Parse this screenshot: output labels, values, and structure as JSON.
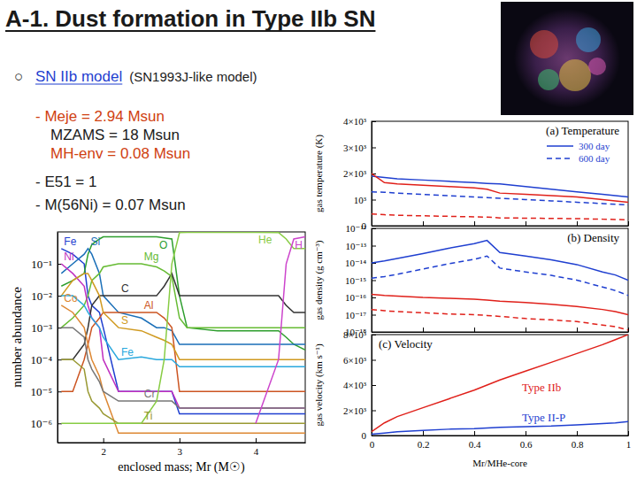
{
  "header": {
    "title": "A-1. Dust formation in Type IIb SN"
  },
  "model": {
    "bullet": "○",
    "heading": "SN IIb model",
    "subheading": "(SN1993J-like model)",
    "lines": [
      "- Meje = 2.94 Msun",
      "MZAMS = 18 Msun",
      "MH-env = 0.08 Msun",
      "- E51 = 1",
      "- M(56Ni) = 0.07 Msun"
    ]
  },
  "chart_data": [
    {
      "type": "line",
      "log": "y",
      "x_label": "enclosed mass; Mr (M☉)",
      "y_label": "number abundance",
      "x": [
        1.45,
        1.6,
        1.75,
        1.8,
        1.85,
        1.95,
        2.0,
        2.2,
        2.5,
        2.7,
        2.8,
        2.9,
        3.0,
        3.1,
        3.5,
        4.0,
        4.3,
        4.4,
        4.5,
        4.65
      ],
      "xlim": [
        1.4,
        4.65
      ],
      "xticks": [
        2,
        3,
        4
      ],
      "ylim": [
        2.5e-07,
        1
      ],
      "yticks": [
        {
          "value": 0.1,
          "label": "10⁻¹"
        },
        {
          "value": 0.01,
          "label": "10⁻²"
        },
        {
          "value": 0.001,
          "label": "10⁻³"
        },
        {
          "value": 0.0001,
          "label": "10⁻⁴"
        },
        {
          "value": 1e-05,
          "label": "10⁻⁵"
        },
        {
          "value": 1e-06,
          "label": "10⁻⁶"
        }
      ],
      "series": [
        {
          "name": "Fe",
          "color": "#1f3fd0",
          "values": [
            0.3,
            0.2,
            0.1,
            0.01,
            0.005,
            0.003,
            0.001,
            1e-05,
            1e-05,
            1e-05,
            1e-05,
            1e-05,
            2e-06,
            2e-06,
            2e-06,
            2e-06,
            2e-06,
            2e-06,
            2e-06,
            2e-06
          ]
        },
        {
          "name": "O",
          "color": "#2e9e2e",
          "values": [
            0.02,
            0.03,
            0.05,
            0.2,
            0.4,
            0.6,
            0.7,
            0.7,
            0.7,
            0.7,
            0.65,
            0.6,
            0.01,
            0.001,
            0.0008,
            0.0008,
            0.0008,
            0.0005,
            0.0003,
            0.0002
          ]
        },
        {
          "name": "Si",
          "color": "#1a6fb8",
          "values": [
            0.05,
            0.1,
            0.2,
            0.3,
            0.2,
            0.05,
            0.01,
            0.003,
            0.002,
            0.001,
            0.001,
            0.0008,
            0.0003,
            0.0003,
            0.0003,
            0.0003,
            0.0003,
            0.0003,
            0.0003,
            0.0003
          ]
        },
        {
          "name": "Mg",
          "color": "#66bb33",
          "values": [
            0.001,
            0.002,
            0.005,
            0.01,
            0.03,
            0.05,
            0.08,
            0.1,
            0.1,
            0.08,
            0.06,
            0.04,
            0.002,
            0.001,
            0.001,
            0.001,
            0.001,
            0.001,
            0.001,
            0.001
          ]
        },
        {
          "name": "Ni",
          "color": "#c030c0",
          "values": [
            0.1,
            0.05,
            0.02,
            0.005,
            0.002,
            0.001,
            0.0001,
            1e-05,
            1e-05,
            1e-05,
            1e-05,
            1e-05,
            3e-06,
            3e-06,
            3e-06,
            3e-06,
            3e-06,
            3e-06,
            3e-06,
            3e-06
          ]
        },
        {
          "name": "C",
          "color": "#333333",
          "values": [
            0.0001,
            0.0001,
            0.0003,
            0.001,
            0.005,
            0.01,
            0.01,
            0.01,
            0.01,
            0.01,
            0.02,
            0.05,
            0.01,
            0.01,
            0.01,
            0.01,
            0.01,
            0.005,
            0.003,
            0.003
          ]
        },
        {
          "name": "Al",
          "color": "#cc5522",
          "values": [
            1e-05,
            1e-05,
            0.0001,
            0.0003,
            0.001,
            0.002,
            0.003,
            0.003,
            0.003,
            0.003,
            0.002,
            0.001,
            1e-05,
            1e-05,
            1e-05,
            1e-05,
            1e-05,
            1e-05,
            1e-05,
            1e-05
          ]
        },
        {
          "name": "Co",
          "color": "#dd8833",
          "values": [
            0.005,
            0.003,
            0.001,
            0.0003,
            0.0001,
            3e-05,
            1e-05,
            5e-07,
            5e-07,
            5e-07,
            5e-07,
            5e-07,
            5e-07,
            5e-07,
            5e-07,
            5e-07,
            5e-07,
            5e-07,
            5e-07,
            5e-07
          ]
        },
        {
          "name": "S",
          "color": "#d09a20",
          "values": [
            0.01,
            0.03,
            0.05,
            0.05,
            0.03,
            0.01,
            0.003,
            0.001,
            0.0008,
            0.0005,
            0.0004,
            0.0003,
            0.0001,
            0.0001,
            0.0001,
            0.0001,
            0.0001,
            0.0001,
            0.0001,
            0.0001
          ]
        },
        {
          "name": "Fe",
          "color": "#2aa8dd",
          "values": [
            0.01,
            0.01,
            0.005,
            0.003,
            0.002,
            0.001,
            0.0005,
            0.0001,
            0.00012,
            0.0001,
            0.0001,
            0.0001,
            6e-05,
            6e-05,
            6e-05,
            6e-05,
            6e-05,
            6e-05,
            6e-05,
            6e-05
          ]
        },
        {
          "name": "Cr",
          "color": "#777777",
          "values": [
            0.001,
            0.001,
            0.0005,
            0.0001,
            5e-05,
            2e-05,
            1e-05,
            5e-06,
            5e-06,
            5e-06,
            5e-06,
            5e-06,
            3e-06,
            3e-06,
            3e-06,
            3e-06,
            3e-06,
            3e-06,
            3e-06,
            3e-06
          ]
        },
        {
          "name": "Ti",
          "color": "#999933",
          "values": [
            0.0001,
            0.0001,
            5e-05,
            1e-05,
            5e-06,
            3e-06,
            2e-06,
            1e-06,
            1e-06,
            1e-06,
            1e-06,
            1e-06,
            1e-06,
            1e-06,
            1e-06,
            1e-06,
            1e-06,
            1e-06,
            1e-06,
            1e-06
          ]
        },
        {
          "name": "He",
          "color": "#88cc44",
          "values": [
            1e-06,
            1e-06,
            1e-06,
            1e-06,
            1e-06,
            1e-06,
            1e-06,
            1e-06,
            1e-06,
            5e-06,
            0.0001,
            0.1,
            0.95,
            0.97,
            0.97,
            0.97,
            0.96,
            0.6,
            0.3,
            0.3
          ]
        },
        {
          "name": "H",
          "color": "#cc44cc",
          "values": [
            null,
            null,
            null,
            null,
            null,
            null,
            null,
            null,
            null,
            null,
            null,
            null,
            null,
            null,
            null,
            1e-06,
            0.0001,
            0.1,
            0.6,
            0.7
          ]
        }
      ]
    },
    {
      "type": "line",
      "title": "(a) Temperature",
      "y_label": "gas temperature (K)",
      "legend": "upper right",
      "tick_labels": "y",
      "x": [
        0,
        0.05,
        0.1,
        0.2,
        0.3,
        0.4,
        0.45,
        0.5,
        0.6,
        0.7,
        0.8,
        0.9,
        0.95,
        1
      ],
      "xlim": [
        0,
        1
      ],
      "xticks": [
        0,
        0.2,
        0.4,
        0.6,
        0.8,
        1
      ],
      "ylim": [
        0,
        4000
      ],
      "yticks": [
        0,
        {
          "value": 1000,
          "label": "10³"
        },
        {
          "value": 2000,
          "label": "2×10³"
        },
        {
          "value": 3000,
          "label": "3×10³"
        },
        {
          "value": 4000,
          "label": "4×10³"
        }
      ],
      "series": [
        {
          "name": "300 day",
          "color": "#1f3fd0",
          "line_style": "solid",
          "values": [
            1900,
            1850,
            1800,
            1750,
            1700,
            1650,
            1620,
            1600,
            1500,
            1400,
            1300,
            1200,
            1150,
            1100
          ]
        },
        {
          "name": "600 day",
          "color": "#1f3fd0",
          "line_style": "dashed",
          "values": [
            1300,
            1280,
            1250,
            1200,
            1150,
            1100,
            1080,
            1050,
            1000,
            950,
            900,
            850,
            820,
            800
          ]
        },
        {
          "color": "#e0201a",
          "line_style": "solid",
          "values": [
            2000,
            1650,
            1600,
            1550,
            1500,
            1450,
            1400,
            1250,
            1200,
            1150,
            1100,
            1000,
            950,
            900
          ]
        },
        {
          "color": "#e0201a",
          "line_style": "dashed",
          "values": [
            450,
            420,
            400,
            380,
            360,
            340,
            330,
            300,
            290,
            280,
            270,
            250,
            240,
            230
          ]
        }
      ]
    },
    {
      "type": "line",
      "title": "(b) Density",
      "y_label": "gas density (g cm⁻³)",
      "log": "y",
      "tick_labels": "y",
      "x": [
        0,
        0.05,
        0.1,
        0.2,
        0.3,
        0.4,
        0.45,
        0.5,
        0.6,
        0.7,
        0.8,
        0.9,
        0.95,
        1
      ],
      "xlim": [
        0,
        1
      ],
      "xticks": [
        0,
        0.2,
        0.4,
        0.6,
        0.8,
        1
      ],
      "ylim": [
        1e-18,
        1e-12
      ],
      "yticks": [
        {
          "value": 1e-12,
          "label": "10⁻¹²"
        },
        {
          "value": 1e-13,
          "label": "10⁻¹³"
        },
        {
          "value": 1e-14,
          "label": "10⁻¹⁴"
        },
        {
          "value": 1e-15,
          "label": "10⁻¹⁵"
        },
        {
          "value": 1e-16,
          "label": "10⁻¹⁶"
        },
        {
          "value": 1e-17,
          "label": "10⁻¹⁷"
        },
        {
          "value": 1e-18,
          "label": "10⁻¹⁸"
        }
      ],
      "series": [
        {
          "color": "#1f3fd0",
          "line_style": "solid",
          "values": [
            1e-14,
            1.3e-14,
            1.8e-14,
            3.5e-14,
            7e-14,
            1.3e-13,
            2e-13,
            4e-14,
            2.5e-14,
            1.5e-14,
            8e-15,
            3e-15,
            2e-15,
            1e-15
          ]
        },
        {
          "color": "#1f3fd0",
          "line_style": "dashed",
          "values": [
            1.3e-15,
            1.6e-15,
            2.2e-15,
            4.4e-15,
            9e-15,
            1.6e-14,
            2.5e-14,
            5e-15,
            3e-15,
            1.9e-15,
            1e-15,
            4e-16,
            2.5e-16,
            1.3e-16
          ]
        },
        {
          "color": "#e0201a",
          "line_style": "solid",
          "values": [
            1.5e-16,
            1.3e-16,
            1.2e-16,
            1e-16,
            9e-17,
            8e-17,
            7e-17,
            6e-17,
            5e-17,
            4e-17,
            3e-17,
            2e-17,
            1.5e-17,
            1e-17
          ]
        },
        {
          "color": "#e0201a",
          "line_style": "dashed",
          "values": [
            2e-17,
            1.7e-17,
            1.5e-17,
            1.3e-17,
            1.1e-17,
            1e-17,
            9e-18,
            8e-18,
            6e-18,
            5e-18,
            4e-18,
            2.5e-18,
            2e-18,
            1.3e-18
          ]
        }
      ]
    },
    {
      "type": "line",
      "title": "(c) Velocity",
      "y_label": "gas velocity (km s⁻¹)",
      "x_label": "Mr/MHe-core",
      "x": [
        0,
        0.05,
        0.1,
        0.2,
        0.3,
        0.4,
        0.45,
        0.5,
        0.6,
        0.7,
        0.8,
        0.9,
        0.95,
        1
      ],
      "xlim": [
        0,
        1
      ],
      "xticks": [
        0,
        0.2,
        0.4,
        0.6,
        0.8,
        1
      ],
      "ylim": [
        0,
        8000
      ],
      "yticks": [
        0,
        {
          "value": 2000,
          "label": "2×10³"
        },
        {
          "value": 4000,
          "label": "4×10³"
        },
        {
          "value": 6000,
          "label": "6×10³"
        },
        {
          "value": 8000,
          "label": "8×10³"
        }
      ],
      "series": [
        {
          "name": "Type IIb",
          "color": "#e0201a",
          "line_style": "solid",
          "values": [
            300,
            1000,
            1500,
            2200,
            2900,
            3600,
            4000,
            4400,
            5100,
            5800,
            6500,
            7200,
            7600,
            8000
          ]
        },
        {
          "name": "Type II-P",
          "color": "#1f3fd0",
          "line_style": "solid",
          "values": [
            100,
            200,
            300,
            400,
            500,
            550,
            600,
            650,
            700,
            750,
            850,
            950,
            1000,
            1100
          ]
        }
      ]
    }
  ]
}
